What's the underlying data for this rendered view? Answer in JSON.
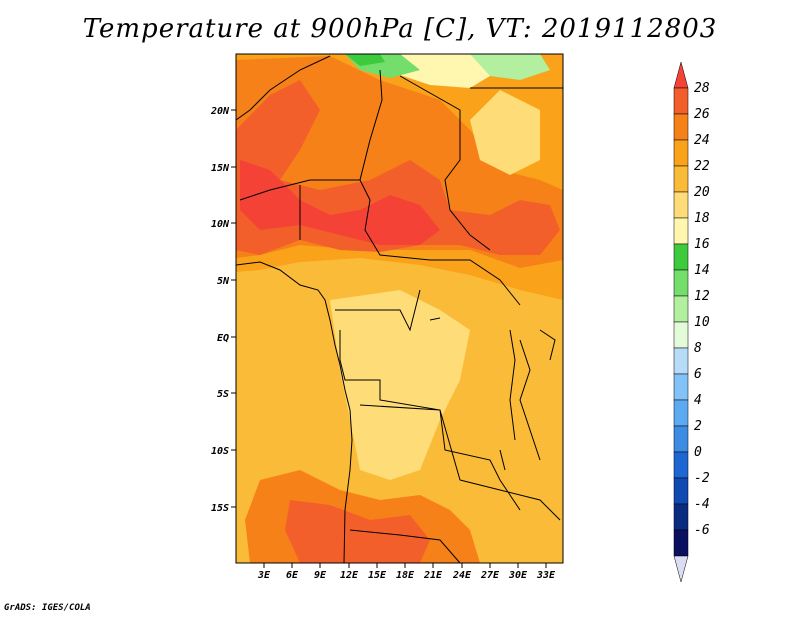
{
  "title": "Temperature at 900hPa [C], VT: 2019112803",
  "credit": "GrADS: IGES/COLA",
  "map": {
    "lat_labels": [
      "20N",
      "15N",
      "10N",
      "5N",
      "EQ",
      "5S",
      "10S",
      "15S"
    ],
    "lon_labels": [
      "3E",
      "6E",
      "9E",
      "12E",
      "15E",
      "18E",
      "21E",
      "24E",
      "27E",
      "30E",
      "33E"
    ]
  },
  "colorbar": {
    "labels": [
      "28",
      "26",
      "24",
      "22",
      "20",
      "18",
      "16",
      "14",
      "12",
      "10",
      "8",
      "6",
      "4",
      "2",
      "0",
      "-2",
      "-4",
      "-6"
    ],
    "colors": [
      "#f44236",
      "#f35f2a",
      "#f78119",
      "#f9a21a",
      "#fabb38",
      "#fedc78",
      "#fff6b0",
      "#3dca3c",
      "#74de6c",
      "#b2f09f",
      "#e3fbd9",
      "#b6dcf8",
      "#83c2f6",
      "#5daaf0",
      "#3d8ce4",
      "#1e67d3",
      "#1049b2",
      "#0a2c80",
      "#0a0f60",
      "#dcdcf4"
    ]
  }
}
